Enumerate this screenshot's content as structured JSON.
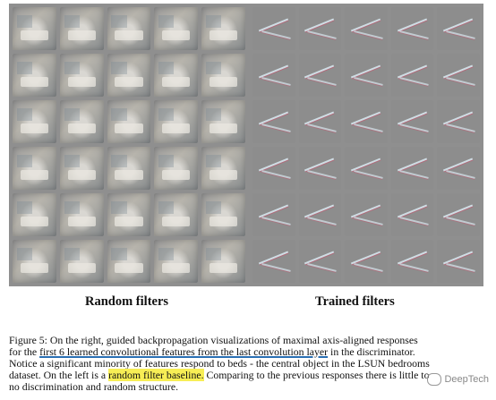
{
  "figure": {
    "random_grid": {
      "rows": 6,
      "cols": 5
    },
    "trained_grid": {
      "rows": 6,
      "cols": 5
    },
    "label_left": "Random filters",
    "label_right": "Trained filters"
  },
  "caption": {
    "l1_prefix": "Figure 5: On the right, guided backpropagation visualizations of maximal axis-aligned responses",
    "l2_a": "for the ",
    "l2_ul": "first 6 learned convolutional features from the last convolution layer",
    "l2_b": " in the discriminator.",
    "l3": "Notice a significant minority of features respond to beds - the central object in the LSUN bedrooms",
    "l4_a": "dataset. On the left is a ",
    "l4_hl": "random filter baseline.",
    "l4_b": " Comparing to the previous responses there is little to",
    "l5": "no discrimination and random structure."
  },
  "watermark": "DeepTech"
}
